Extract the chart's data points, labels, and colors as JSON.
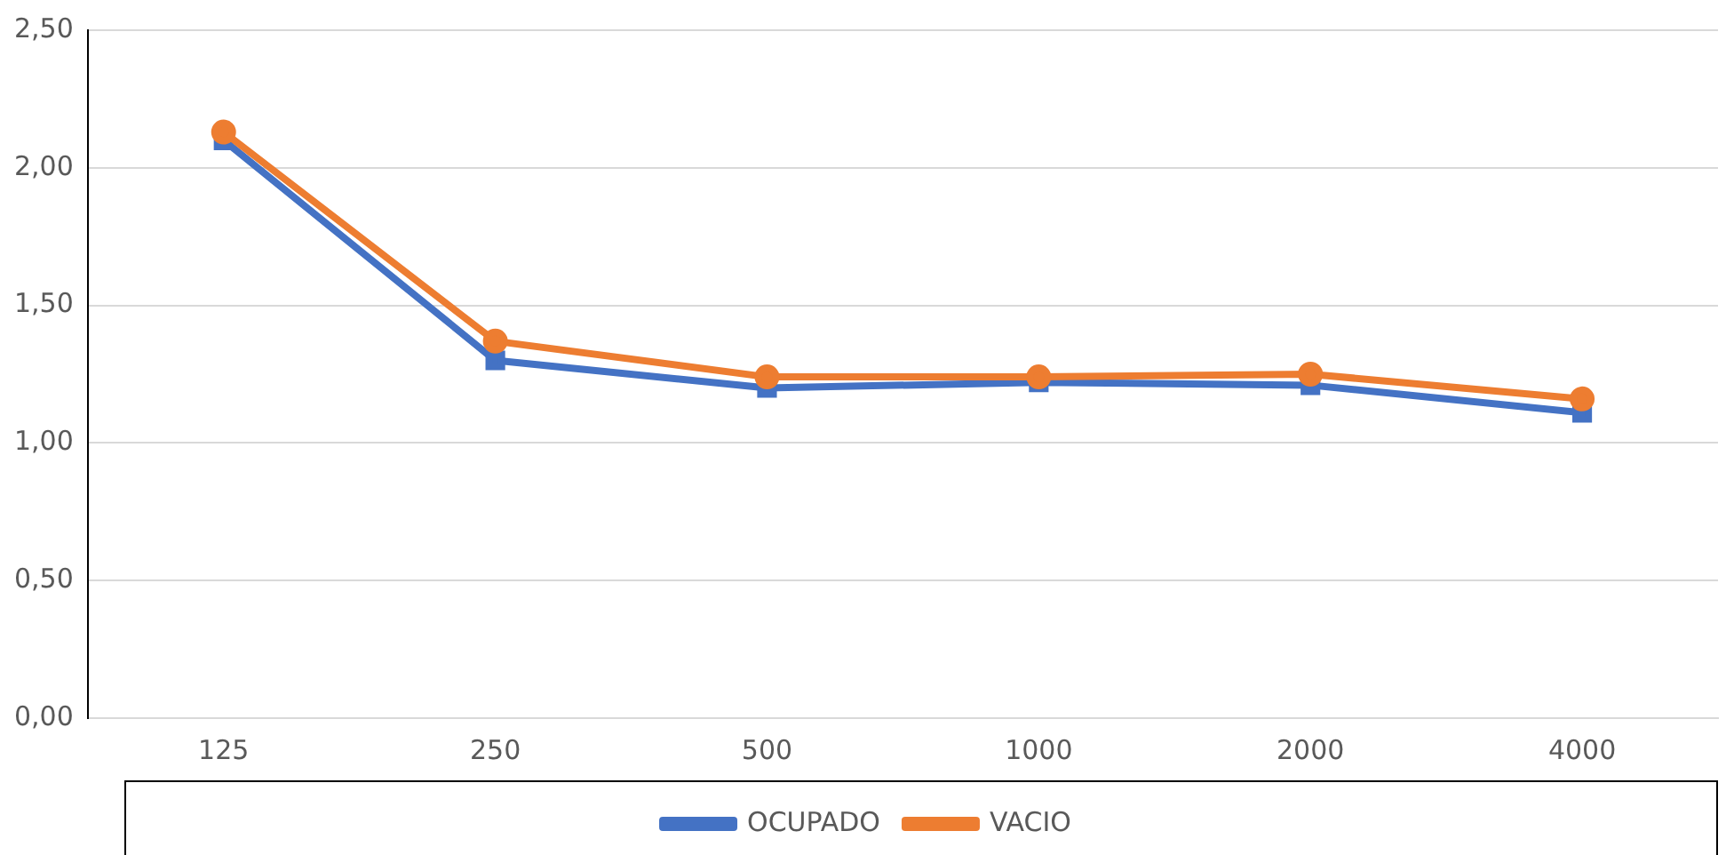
{
  "chart_data": {
    "type": "line",
    "categories": [
      "125",
      "250",
      "500",
      "1000",
      "2000",
      "4000"
    ],
    "series": [
      {
        "name": "OCUPADO",
        "color": "#4472c4",
        "marker": "square",
        "values": [
          2.1,
          1.3,
          1.2,
          1.22,
          1.21,
          1.11
        ]
      },
      {
        "name": "VACIO",
        "color": "#ed7d31",
        "marker": "circle",
        "values": [
          2.13,
          1.37,
          1.24,
          1.24,
          1.25,
          1.16
        ]
      }
    ],
    "ylim": [
      0,
      2.5
    ],
    "yticks": [
      {
        "value": 0,
        "label": "0,00"
      },
      {
        "value": 0.5,
        "label": "0,50"
      },
      {
        "value": 1,
        "label": "1,00"
      },
      {
        "value": 1.5,
        "label": "1,50"
      },
      {
        "value": 2,
        "label": "2,00"
      },
      {
        "value": 2.5,
        "label": "2,50"
      }
    ],
    "grid": "y",
    "legend": "bottom",
    "line_style": "solid"
  }
}
